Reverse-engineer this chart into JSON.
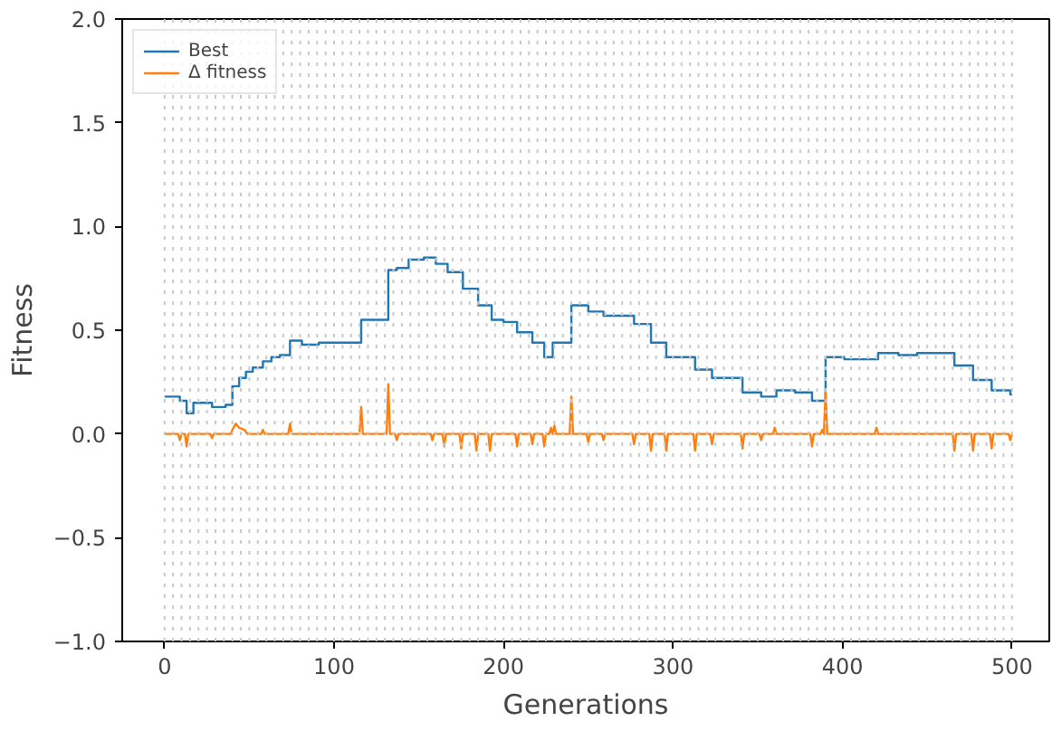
{
  "chart_data": {
    "type": "line",
    "xlabel": "Generations",
    "ylabel": "Fitness",
    "xlim": [
      -25,
      522
    ],
    "ylim": [
      -1.0,
      2.0
    ],
    "xticks": [
      0,
      100,
      200,
      300,
      400,
      500
    ],
    "yticks": [
      {
        "value": -1.0,
        "label": "−1.0"
      },
      {
        "value": -0.5,
        "label": "−0.5"
      },
      {
        "value": 0,
        "label": "0.0"
      },
      {
        "value": 0.5,
        "label": "0.5"
      },
      {
        "value": 1.0,
        "label": "1.0"
      },
      {
        "value": 1.5,
        "label": "1.5"
      },
      {
        "value": 2.0,
        "label": "2.0"
      }
    ],
    "legend": "top left",
    "grid": false,
    "series": [
      {
        "name": "Best",
        "type": "step",
        "color": "#1f77b4",
        "x": [
          0,
          9,
          13,
          17,
          28,
          36,
          40,
          44,
          48,
          52,
          58,
          63,
          68,
          74,
          81,
          91,
          116,
          132,
          137,
          144,
          153,
          160,
          167,
          176,
          185,
          193,
          200,
          208,
          217,
          224,
          229,
          240,
          250,
          259,
          277,
          287,
          296,
          313,
          323,
          341,
          352,
          361,
          372,
          382,
          390,
          401,
          421,
          433,
          444,
          466,
          477,
          488,
          499,
          500
        ],
        "values": [
          0.18,
          0.16,
          0.1,
          0.15,
          0.13,
          0.14,
          0.23,
          0.27,
          0.3,
          0.32,
          0.35,
          0.37,
          0.38,
          0.45,
          0.43,
          0.44,
          0.55,
          0.79,
          0.8,
          0.84,
          0.85,
          0.82,
          0.78,
          0.7,
          0.62,
          0.55,
          0.54,
          0.49,
          0.44,
          0.37,
          0.44,
          0.62,
          0.59,
          0.57,
          0.53,
          0.44,
          0.37,
          0.31,
          0.27,
          0.2,
          0.18,
          0.21,
          0.2,
          0.16,
          0.37,
          0.36,
          0.39,
          0.38,
          0.39,
          0.33,
          0.26,
          0.21,
          0.19,
          0.19
        ]
      },
      {
        "name": "Δ fitness",
        "color": "#ff7f0e",
        "x": [
          0,
          8,
          9,
          10,
          12,
          13,
          14,
          27,
          28,
          29,
          39,
          40,
          42,
          44,
          47,
          49,
          57,
          58,
          59,
          73,
          74,
          75,
          115,
          116,
          117,
          131,
          132,
          133,
          136,
          137,
          138,
          157,
          158,
          159,
          164,
          165,
          166,
          174,
          175,
          176,
          183,
          184,
          185,
          191,
          192,
          193,
          207,
          208,
          209,
          216,
          217,
          218,
          223,
          224,
          225,
          227,
          228,
          229,
          230,
          231,
          239,
          240,
          241,
          249,
          250,
          251,
          258,
          259,
          260,
          276,
          277,
          278,
          286,
          287,
          288,
          295,
          296,
          297,
          312,
          313,
          314,
          322,
          323,
          324,
          340,
          341,
          342,
          351,
          352,
          353,
          359,
          360,
          361,
          381,
          382,
          383,
          387,
          388,
          389,
          390,
          391,
          419,
          420,
          421,
          465,
          466,
          467,
          476,
          477,
          478,
          487,
          488,
          489,
          498,
          499,
          500
        ],
        "values": [
          0,
          0,
          -0.03,
          0,
          0,
          -0.06,
          0,
          0,
          -0.02,
          0,
          0,
          0.02,
          0.05,
          0.03,
          0.02,
          0,
          0,
          0.02,
          0,
          0,
          0.05,
          0,
          0,
          0.13,
          0,
          0,
          0.24,
          0,
          0,
          -0.03,
          0,
          0,
          -0.03,
          0,
          0,
          -0.06,
          0,
          0,
          -0.07,
          0,
          0,
          -0.08,
          0,
          0,
          -0.08,
          0,
          0,
          -0.06,
          0,
          0,
          -0.05,
          0,
          0,
          -0.06,
          0,
          0,
          0.03,
          0,
          0.04,
          0,
          0,
          0.18,
          0,
          0,
          -0.04,
          0,
          0,
          -0.03,
          0,
          0,
          -0.05,
          0,
          0,
          -0.08,
          0,
          0,
          -0.08,
          0,
          0,
          -0.08,
          0,
          0,
          -0.05,
          0,
          0,
          -0.07,
          0,
          0,
          -0.03,
          0,
          0,
          0.03,
          0,
          0,
          -0.06,
          0,
          0,
          0.02,
          0,
          0.2,
          0,
          0,
          0.03,
          0,
          0,
          -0.08,
          0,
          0,
          -0.08,
          0,
          0,
          -0.07,
          0,
          0,
          -0.03,
          0
        ]
      }
    ],
    "ref_lines": [
      {
        "axis": "x",
        "value": 0
      },
      {
        "axis": "x",
        "value": 5
      },
      {
        "axis": "x",
        "value": 10
      },
      {
        "axis": "x",
        "value": 15
      },
      {
        "axis": "x",
        "value": 20
      },
      {
        "axis": "x",
        "value": 25
      },
      {
        "axis": "x",
        "value": 30
      },
      {
        "axis": "x",
        "value": 35
      },
      {
        "axis": "x",
        "value": 40
      },
      {
        "axis": "x",
        "value": 45
      },
      {
        "axis": "x",
        "value": 50
      },
      {
        "axis": "x",
        "value": 55
      },
      {
        "axis": "x",
        "value": 60
      },
      {
        "axis": "x",
        "value": 65
      },
      {
        "axis": "x",
        "value": 70
      },
      {
        "axis": "x",
        "value": 75
      },
      {
        "axis": "x",
        "value": 80
      },
      {
        "axis": "x",
        "value": 85
      },
      {
        "axis": "x",
        "value": 90
      },
      {
        "axis": "x",
        "value": 95
      },
      {
        "axis": "x",
        "value": 100
      },
      {
        "axis": "x",
        "value": 105
      },
      {
        "axis": "x",
        "value": 110
      },
      {
        "axis": "x",
        "value": 115
      },
      {
        "axis": "x",
        "value": 120
      },
      {
        "axis": "x",
        "value": 125
      },
      {
        "axis": "x",
        "value": 130
      },
      {
        "axis": "x",
        "value": 135
      },
      {
        "axis": "x",
        "value": 140
      },
      {
        "axis": "x",
        "value": 145
      },
      {
        "axis": "x",
        "value": 150
      },
      {
        "axis": "x",
        "value": 155
      },
      {
        "axis": "x",
        "value": 160
      },
      {
        "axis": "x",
        "value": 165
      },
      {
        "axis": "x",
        "value": 170
      },
      {
        "axis": "x",
        "value": 175
      },
      {
        "axis": "x",
        "value": 180
      },
      {
        "axis": "x",
        "value": 185
      },
      {
        "axis": "x",
        "value": 190
      },
      {
        "axis": "x",
        "value": 195
      },
      {
        "axis": "x",
        "value": 200
      },
      {
        "axis": "x",
        "value": 205
      },
      {
        "axis": "x",
        "value": 210
      },
      {
        "axis": "x",
        "value": 215
      },
      {
        "axis": "x",
        "value": 220
      },
      {
        "axis": "x",
        "value": 225
      },
      {
        "axis": "x",
        "value": 230
      },
      {
        "axis": "x",
        "value": 235
      },
      {
        "axis": "x",
        "value": 240
      },
      {
        "axis": "x",
        "value": 245
      },
      {
        "axis": "x",
        "value": 250
      },
      {
        "axis": "x",
        "value": 255
      },
      {
        "axis": "x",
        "value": 260
      },
      {
        "axis": "x",
        "value": 265
      },
      {
        "axis": "x",
        "value": 270
      },
      {
        "axis": "x",
        "value": 275
      },
      {
        "axis": "x",
        "value": 280
      },
      {
        "axis": "x",
        "value": 285
      },
      {
        "axis": "x",
        "value": 290
      },
      {
        "axis": "x",
        "value": 295
      },
      {
        "axis": "x",
        "value": 300
      },
      {
        "axis": "x",
        "value": 305
      },
      {
        "axis": "x",
        "value": 310
      },
      {
        "axis": "x",
        "value": 315
      },
      {
        "axis": "x",
        "value": 320
      },
      {
        "axis": "x",
        "value": 325
      },
      {
        "axis": "x",
        "value": 330
      },
      {
        "axis": "x",
        "value": 335
      },
      {
        "axis": "x",
        "value": 340
      },
      {
        "axis": "x",
        "value": 345
      },
      {
        "axis": "x",
        "value": 350
      },
      {
        "axis": "x",
        "value": 355
      },
      {
        "axis": "x",
        "value": 360
      },
      {
        "axis": "x",
        "value": 365
      },
      {
        "axis": "x",
        "value": 370
      },
      {
        "axis": "x",
        "value": 375
      },
      {
        "axis": "x",
        "value": 380
      },
      {
        "axis": "x",
        "value": 385
      },
      {
        "axis": "x",
        "value": 390
      },
      {
        "axis": "x",
        "value": 395
      },
      {
        "axis": "x",
        "value": 400
      },
      {
        "axis": "x",
        "value": 405
      },
      {
        "axis": "x",
        "value": 410
      },
      {
        "axis": "x",
        "value": 415
      },
      {
        "axis": "x",
        "value": 420
      },
      {
        "axis": "x",
        "value": 425
      },
      {
        "axis": "x",
        "value": 430
      },
      {
        "axis": "x",
        "value": 435
      },
      {
        "axis": "x",
        "value": 440
      },
      {
        "axis": "x",
        "value": 445
      },
      {
        "axis": "x",
        "value": 450
      },
      {
        "axis": "x",
        "value": 455
      },
      {
        "axis": "x",
        "value": 460
      },
      {
        "axis": "x",
        "value": 465
      },
      {
        "axis": "x",
        "value": 470
      },
      {
        "axis": "x",
        "value": 475
      },
      {
        "axis": "x",
        "value": 480
      },
      {
        "axis": "x",
        "value": 485
      },
      {
        "axis": "x",
        "value": 490
      },
      {
        "axis": "x",
        "value": 495
      },
      {
        "axis": "x",
        "value": 500
      }
    ],
    "line_style": "solid"
  }
}
